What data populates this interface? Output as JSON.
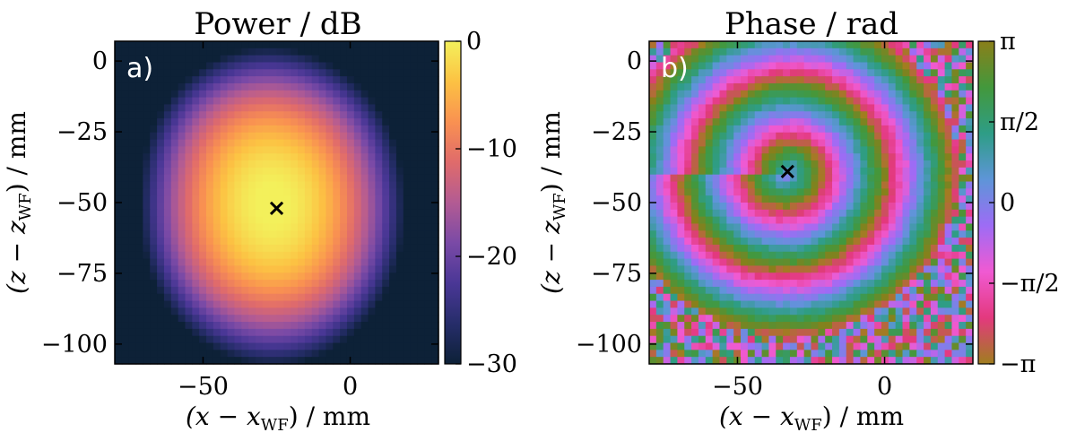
{
  "chart_data": [
    {
      "id": "a",
      "type": "heatmap",
      "panel_label": "a)",
      "title": "Power / dB",
      "xlabel": "(x − x",
      "xlabel_sub": "WF",
      "xlabel_unit": ") / mm",
      "ylabel": "(z − z",
      "ylabel_sub": "WF",
      "ylabel_unit": ") / mm",
      "xlim": [
        -80,
        30
      ],
      "ylim": [
        -107,
        7
      ],
      "xticks": [
        -50,
        0
      ],
      "xtick_labels": [
        "−50",
        "0"
      ],
      "yticks": [
        0,
        -25,
        -50,
        -75,
        -100
      ],
      "ytick_labels": [
        "0",
        "−25",
        "−50",
        "−75",
        "−100"
      ],
      "colorbar": {
        "range": [
          -30,
          0
        ],
        "ticks": [
          0,
          -10,
          -20,
          -30
        ],
        "tick_labels": [
          "0",
          "−10",
          "−20",
          "−30"
        ],
        "colormap": "plasma",
        "stops": [
          "#0d2137",
          "#262d6a",
          "#4a3796",
          "#7a4aa6",
          "#b35b93",
          "#e06b6b",
          "#f99151",
          "#fcc243",
          "#f3f05b"
        ]
      },
      "field": {
        "background_db": -30,
        "peak_db": 0,
        "components": [
          {
            "x": -26,
            "z": -52,
            "sx": 12,
            "sz": 15,
            "db": 0
          },
          {
            "x": -32,
            "z": -38,
            "sx": 11,
            "sz": 12,
            "db": -8
          },
          {
            "x": -24,
            "z": -30,
            "sx": 12,
            "sz": 9,
            "db": -15
          },
          {
            "x": -42,
            "z": -60,
            "sx": 9,
            "sz": 12,
            "db": -14
          },
          {
            "x": -24,
            "z": -70,
            "sx": 11,
            "sz": 8,
            "db": -13
          },
          {
            "x": -15,
            "z": -42,
            "sx": 6,
            "sz": 8,
            "db": -15
          },
          {
            "x": -43,
            "z": -80,
            "sx": 4,
            "sz": 3,
            "db": -25
          }
        ]
      },
      "marker": {
        "x": -25,
        "z": -52,
        "symbol": "×"
      }
    },
    {
      "id": "b",
      "type": "heatmap",
      "panel_label": "b)",
      "title": "Phase / rad",
      "xlabel": "(x − x",
      "xlabel_sub": "WF",
      "xlabel_unit": ") / mm",
      "ylabel": "(z − z",
      "ylabel_sub": "WF",
      "ylabel_unit": ") / mm",
      "xlim": [
        -80,
        30
      ],
      "ylim": [
        -107,
        7
      ],
      "xticks": [
        -50,
        0
      ],
      "xtick_labels": [
        "−50",
        "0"
      ],
      "yticks": [
        0,
        -25,
        -50,
        -75,
        -100
      ],
      "ytick_labels": [
        "0",
        "−25",
        "−50",
        "−75",
        "−100"
      ],
      "colorbar": {
        "range": [
          -3.1416,
          3.1416
        ],
        "ticks": [
          3.1416,
          1.5708,
          0,
          -1.5708,
          -3.1416
        ],
        "tick_labels": [
          "π",
          "π/2",
          "0",
          "−π/2",
          "−π"
        ],
        "colormap": "cyclic",
        "stops": [
          "#a07e1f",
          "#e3397e",
          "#f05ad2",
          "#9d6cf5",
          "#5e95d8",
          "#2e9d86",
          "#43983c",
          "#8a7f1a"
        ]
      },
      "field": {
        "center_x": -33,
        "center_z": -39,
        "wavelength_mm": 22,
        "center_phase": 0,
        "noise_outside_radius_mm": 58
      },
      "marker": {
        "x": -33,
        "z": -39,
        "symbol": "×"
      }
    }
  ]
}
